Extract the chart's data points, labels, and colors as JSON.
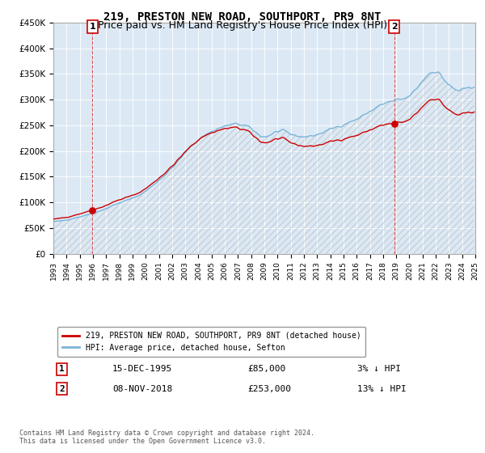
{
  "title": "219, PRESTON NEW ROAD, SOUTHPORT, PR9 8NT",
  "subtitle": "Price paid vs. HM Land Registry's House Price Index (HPI)",
  "title_fontsize": 10,
  "subtitle_fontsize": 9,
  "ylim": [
    0,
    450000
  ],
  "yticks": [
    0,
    50000,
    100000,
    150000,
    200000,
    250000,
    300000,
    350000,
    400000,
    450000
  ],
  "ytick_labels": [
    "£0",
    "£50K",
    "£100K",
    "£150K",
    "£200K",
    "£250K",
    "£300K",
    "£350K",
    "£400K",
    "£450K"
  ],
  "hpi_color": "#7ab4d8",
  "price_color": "#cc0000",
  "marker_color": "#cc0000",
  "dashed_color": "#dd4444",
  "bg_color": "#ffffff",
  "plot_bg_color": "#dce9f5",
  "grid_color": "#ffffff",
  "legend_label_red": "219, PRESTON NEW ROAD, SOUTHPORT, PR9 8NT (detached house)",
  "legend_label_blue": "HPI: Average price, detached house, Sefton",
  "sale1_date": "15-DEC-1995",
  "sale1_price": 85000,
  "sale1_label": "3% ↓ HPI",
  "sale2_date": "08-NOV-2018",
  "sale2_price": 253000,
  "sale2_label": "13% ↓ HPI",
  "footnote": "Contains HM Land Registry data © Crown copyright and database right 2024.\nThis data is licensed under the Open Government Licence v3.0.",
  "sale1_x": 1995.96,
  "sale1_y": 85000,
  "sale2_x": 2018.85,
  "sale2_y": 253000,
  "xlim_start": 1993,
  "xlim_end": 2025,
  "xtick_years": [
    1993,
    1994,
    1995,
    1996,
    1997,
    1998,
    1999,
    2000,
    2001,
    2002,
    2003,
    2004,
    2005,
    2006,
    2007,
    2008,
    2009,
    2010,
    2011,
    2012,
    2013,
    2014,
    2015,
    2016,
    2017,
    2018,
    2019,
    2020,
    2021,
    2022,
    2023,
    2024,
    2025
  ]
}
